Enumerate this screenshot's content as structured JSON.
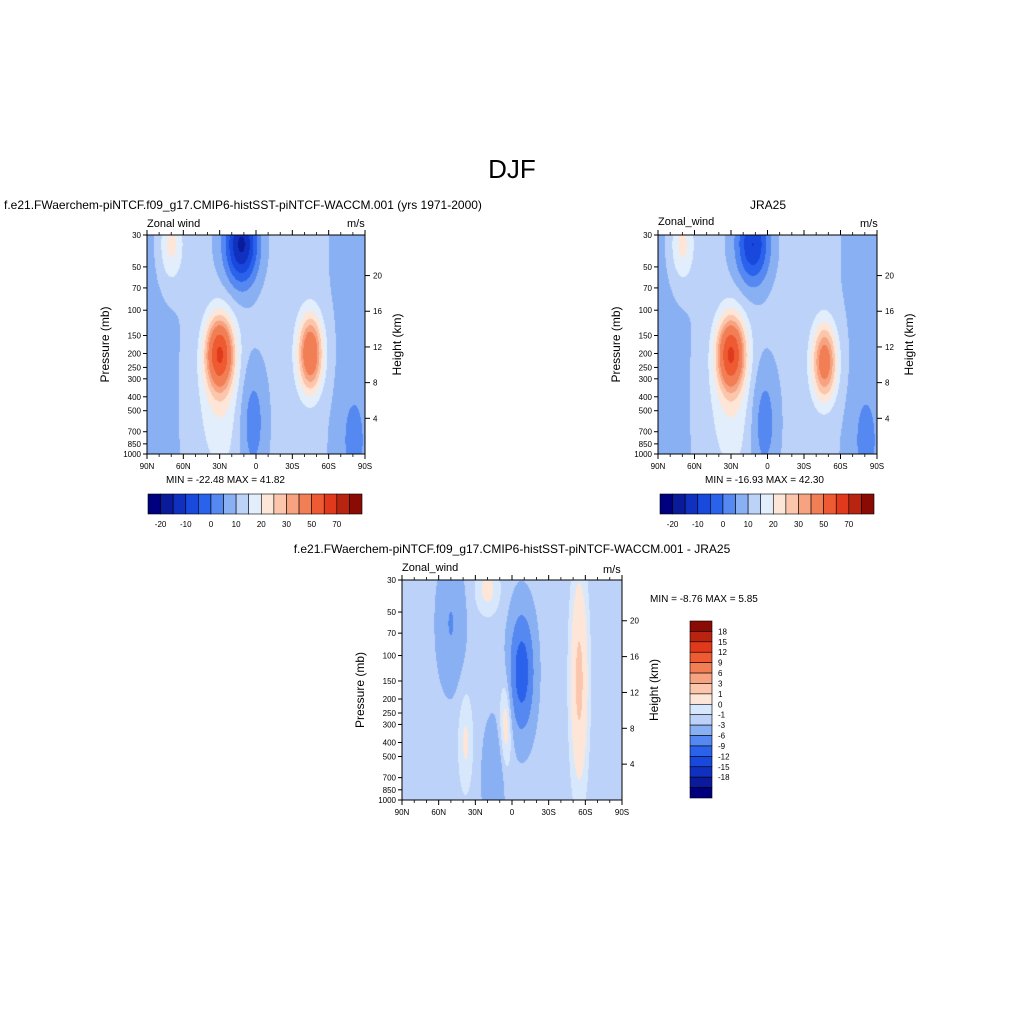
{
  "figure": {
    "title": "DJF",
    "panel1_title": "f.e21.FWaerchem-piNTCF.f09_g17.CMIP6-histSST-piNTCF-WACCM.001 (yrs 1971-2000)",
    "panel2_title": "JRA25",
    "panel3_title": "f.e21.FWaerchem-piNTCF.f09_g17.CMIP6-histSST-piNTCF-WACCM.001 - JRA25"
  },
  "colors": {
    "abs_scale": [
      "#00007f",
      "#0a1a9a",
      "#1030c0",
      "#1848dc",
      "#2a62ec",
      "#5588f0",
      "#8ab0f4",
      "#bcd2f8",
      "#e2eefc",
      "#fde6d8",
      "#fbc6ac",
      "#f7a280",
      "#f27e56",
      "#ee5a32",
      "#e0391c",
      "#b82410",
      "#8a0a04"
    ],
    "diff_scale": [
      "#00007f",
      "#0a1a9a",
      "#1030c0",
      "#1848dc",
      "#2a62ec",
      "#5588f0",
      "#8ab0f4",
      "#bcd2f8",
      "#d8e8fc",
      "#fde6d8",
      "#fbc6ac",
      "#f7a280",
      "#f27e56",
      "#ee5a32",
      "#e0391c",
      "#b82410",
      "#8a0a04"
    ]
  },
  "chart_data": [
    {
      "type": "heatmap",
      "title": "f.e21.FWaerchem-piNTCF.f09_g17.CMIP6-histSST-piNTCF-WACCM.001 (yrs 1971-2000)",
      "left_label": "Zonal wind",
      "right_label": "m/s",
      "xlabel": "",
      "ylabel": "Pressure (mb)",
      "y2label": "Height (km)",
      "x_ticks": [
        "90N",
        "60N",
        "30N",
        "0",
        "30S",
        "60S",
        "90S"
      ],
      "x_range": [
        90,
        -90
      ],
      "y_ticks": [
        30,
        50,
        70,
        100,
        150,
        200,
        250,
        300,
        400,
        500,
        700,
        850,
        1000
      ],
      "y_range": [
        30,
        1000
      ],
      "y_scale": "log",
      "y2_ticks": [
        4,
        8,
        12,
        16,
        20
      ],
      "min": -22.48,
      "max": 41.82,
      "minmax_text": "MIN = -22.48  MAX =  41.82",
      "levels": [
        -25,
        -20,
        -15,
        -10,
        -5,
        0,
        5,
        10,
        15,
        20,
        25,
        30,
        40,
        50,
        60,
        70
      ],
      "colorbar_labels": [
        "-20",
        "-10",
        "0",
        "10",
        "20",
        "30",
        "50",
        "70"
      ],
      "jets": [
        {
          "lat": 30,
          "p": 200,
          "value": 41.8
        },
        {
          "lat": -45,
          "p": 200,
          "value": 36
        },
        {
          "lat": 15,
          "p": 40,
          "value": -22.5
        }
      ]
    },
    {
      "type": "heatmap",
      "title": "JRA25",
      "left_label": "Zonal_wind",
      "right_label": "m/s",
      "xlabel": "",
      "ylabel": "Pressure (mb)",
      "y2label": "Height (km)",
      "x_ticks": [
        "90N",
        "60N",
        "30N",
        "0",
        "30S",
        "60S",
        "90S"
      ],
      "x_range": [
        90,
        -90
      ],
      "y_ticks": [
        30,
        50,
        70,
        100,
        150,
        200,
        250,
        300,
        400,
        500,
        700,
        850,
        1000
      ],
      "y_range": [
        30,
        1000
      ],
      "y_scale": "log",
      "y2_ticks": [
        4,
        8,
        12,
        16,
        20
      ],
      "min": -16.93,
      "max": 42.3,
      "minmax_text": "MIN = -16.93  MAX =  42.30",
      "levels": [
        -25,
        -20,
        -15,
        -10,
        -5,
        0,
        5,
        10,
        15,
        20,
        25,
        30,
        40,
        50,
        60,
        70
      ],
      "colorbar_labels": [
        "-20",
        "-10",
        "0",
        "10",
        "20",
        "30",
        "50",
        "70"
      ],
      "jets": [
        {
          "lat": 30,
          "p": 200,
          "value": 42.3
        },
        {
          "lat": -45,
          "p": 250,
          "value": 32
        },
        {
          "lat": 15,
          "p": 40,
          "value": -16.9
        }
      ]
    },
    {
      "type": "heatmap",
      "title": "f.e21.FWaerchem-piNTCF.f09_g17.CMIP6-histSST-piNTCF-WACCM.001 - JRA25",
      "left_label": "Zonal_wind",
      "right_label": "m/s",
      "xlabel": "",
      "ylabel": "Pressure (mb)",
      "y2label": "Height (km)",
      "x_ticks": [
        "90N",
        "60N",
        "30N",
        "0",
        "30S",
        "60S",
        "90S"
      ],
      "x_range": [
        90,
        -90
      ],
      "y_ticks": [
        30,
        50,
        70,
        100,
        150,
        200,
        250,
        300,
        400,
        500,
        700,
        850,
        1000
      ],
      "y_range": [
        30,
        1000
      ],
      "y_scale": "log",
      "y2_ticks": [
        4,
        8,
        12,
        16,
        20
      ],
      "min": -8.76,
      "max": 5.85,
      "minmax_text": "MIN =  -8.76  MAX =   5.85",
      "levels": [
        -18,
        -15,
        -12,
        -9,
        -6,
        -3,
        -1,
        0,
        1,
        3,
        6,
        9,
        12,
        15,
        18
      ],
      "colorbar_labels": [
        "18",
        "15",
        "12",
        "9",
        "6",
        "3",
        "1",
        "0",
        "-1",
        "-3",
        "-6",
        "-9",
        "-12",
        "-15",
        "-18"
      ]
    }
  ]
}
